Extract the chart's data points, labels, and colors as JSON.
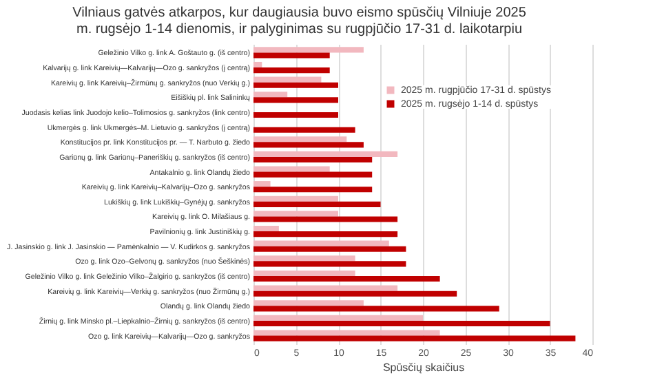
{
  "chart_data": {
    "type": "bar",
    "orientation": "horizontal",
    "title": "Vilniaus gatvės atkarpos, kur daugiausia buvo eismo spūsčių Vilniuje 2025 m. rugsėjo 1-14 dienomis, ir palyginimas su rugpjūčio 17-31 d. laikotarpiu",
    "xlabel": "Spūsčių skaičius",
    "categories": [
      "Geležinio Vilko g. link A. Goštauto g. (iš centro)",
      "Kalvarijų g. link Kareivių—Kalvarijų—Ozo  g. sankryžos (į centrą)",
      "Kareivių g. link Kareivių–Žirmūnų  g. sankryžos  (nuo Verkių g.)",
      "Eišiškių pl. link Salininkų",
      "Juodasis kelias link Juodojo kelio–Tolimosios g. sankryžos (link centro)",
      "Ukmergės g. link Ukmergės–M. Lietuvio g. sankryžos (į centrą)",
      "Konstitucijos pr. link Konstitucijos pr. — T. Narbuto g. žiedo",
      "Gariūnų g. link Gariūnų–Paneriškių g. sankryžos (iš centro)",
      "Antakalnio g. link Olandų žiedo",
      "Kareivių g. link Kareivių–Kalvarijų–Ozo  g. sankryžos",
      "Lukiškių g. link Lukiškių–Gynėjų g. sankryžos",
      "Kareivių g. link O. Milašiaus g.",
      "Pavilnionių g. link Justiniškių g.",
      "J. Jasinskio g. link J. Jasinskio — Pamėnkalnio — V. Kudirkos g. sankryžos",
      "Ozo g. link Ozo–Gelvonų g. sankryžos  (nuo Šeškinės)",
      "Geležinio Vilko g. link Geležinio Vilko–Žalgirio g. sankryžos  (iš centro)",
      "Kareivių g. link Kareivių—Verkių  g. sankryžos  (nuo Žirmūnų g.)",
      "Olandų g. link Olandų žiedo",
      "Žirnių g. link Minsko pl.–Liepkalnio–Žirnių g. sankryžos (iš centro)",
      "Ozo g. link Kareivių—Kalvarijų—Ozo  g. sankryžos"
    ],
    "series": [
      {
        "name": "2025 m. rugpjūčio 17-31 d. spūstys",
        "color": "#f2b8bf",
        "values": [
          13,
          1,
          8,
          4,
          0,
          0,
          11,
          17,
          9,
          2,
          10,
          10,
          3,
          16,
          12,
          12,
          17,
          13,
          20,
          22
        ]
      },
      {
        "name": "2025 m. rugsėjo 1-14 d. spūstys",
        "color": "#c00000",
        "values": [
          9,
          9,
          10,
          10,
          10,
          12,
          13,
          14,
          14,
          14,
          15,
          17,
          17,
          18,
          18,
          22,
          24,
          29,
          35,
          38
        ]
      }
    ],
    "xlim": [
      0,
      40
    ],
    "xticks": [
      0,
      5,
      10,
      15,
      20,
      25,
      30,
      35,
      40
    ],
    "grid": "x",
    "legend": "top right"
  }
}
